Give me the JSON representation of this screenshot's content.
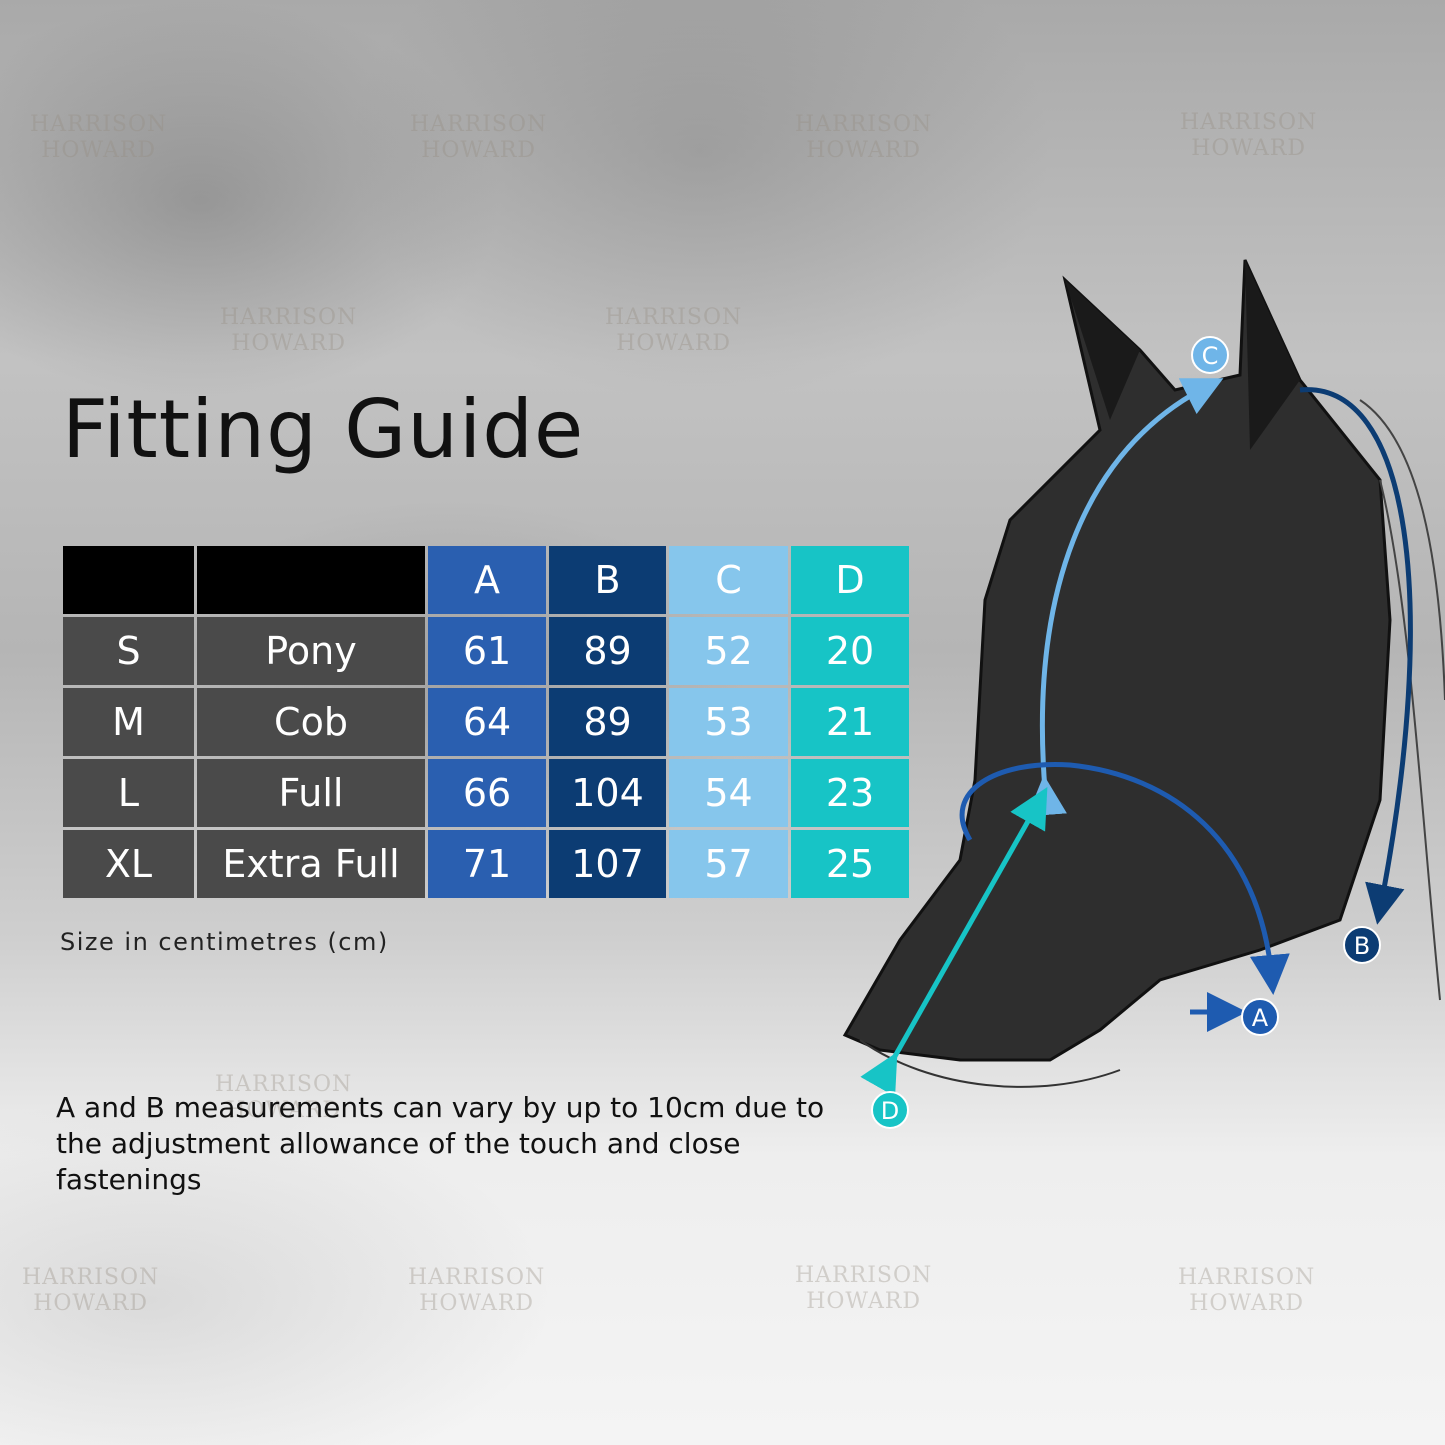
{
  "title": "Fitting Guide",
  "watermark": "HARRISON HOWARD",
  "table": {
    "headers": [
      "",
      "",
      "A",
      "B",
      "C",
      "D"
    ],
    "header_colors": [
      "#000000",
      "#000000",
      "#2a5fb0",
      "#0c3c73",
      "#86c6ec",
      "#17c4c6"
    ],
    "rows": [
      {
        "size": "S",
        "name": "Pony",
        "A": "61",
        "B": "89",
        "C": "52",
        "D": "20"
      },
      {
        "size": "M",
        "name": "Cob",
        "A": "64",
        "B": "89",
        "C": "53",
        "D": "21"
      },
      {
        "size": "L",
        "name": "Full",
        "A": "66",
        "B": "104",
        "C": "54",
        "D": "23"
      },
      {
        "size": "XL",
        "name": "Extra Full",
        "A": "71",
        "B": "107",
        "C": "57",
        "D": "25"
      }
    ]
  },
  "unit_note": "Size in centimetres (cm)",
  "disclaimer": "A and B measurements can vary by up to 10cm due to the adjustment allowance of the touch and close fastenings",
  "diagram_labels": {
    "A": "A",
    "B": "B",
    "C": "C",
    "D": "D"
  }
}
